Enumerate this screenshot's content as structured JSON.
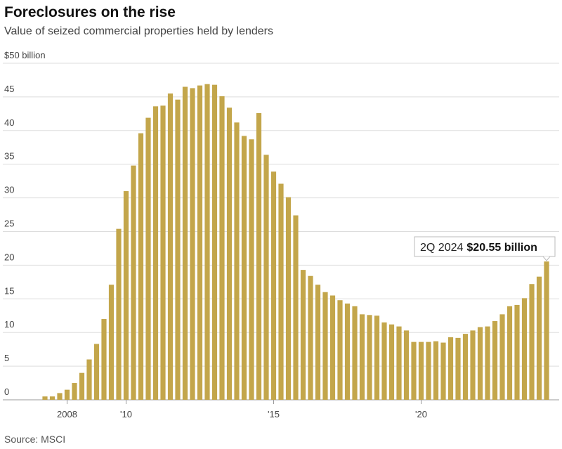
{
  "chart_data": {
    "type": "bar",
    "title": "Foreclosures on the rise",
    "subtitle": "Value of seized commercial properties held by lenders",
    "source": "Source: MSCI",
    "annotation": "2Q 2024",
    "color": "#c3a64b",
    "grid": true,
    "ylim": [
      0,
      50
    ],
    "yticks": [
      0,
      5,
      10,
      15,
      20,
      25,
      30,
      35,
      40,
      45,
      {
        "value": 50,
        "label": "$50 billion"
      }
    ],
    "categories": [
      null,
      null,
      null,
      "2008",
      null,
      null,
      null,
      null,
      null,
      null,
      null,
      "'10",
      null,
      null,
      null,
      null,
      null,
      null,
      null,
      null,
      null,
      null,
      null,
      null,
      null,
      null,
      null,
      null,
      null,
      null,
      null,
      "'15",
      null,
      null,
      null,
      null,
      null,
      null,
      null,
      null,
      null,
      null,
      null,
      null,
      null,
      null,
      null,
      null,
      null,
      null,
      null,
      "'20",
      null,
      null,
      null,
      null,
      null,
      null,
      null,
      null,
      null,
      null,
      null,
      null,
      null,
      null,
      null,
      null,
      null
    ],
    "values": [
      0.5,
      0.5,
      1,
      1.5,
      2.5,
      4,
      6,
      8.3,
      12,
      17.1,
      25.4,
      31,
      34.8,
      39.6,
      41.9,
      43.6,
      43.7,
      45.5,
      44.6,
      46.5,
      46.3,
      46.7,
      46.9,
      46.8,
      45.1,
      43.4,
      41.2,
      39.2,
      38.7,
      42.6,
      36.4,
      33.9,
      32.1,
      30.1,
      27.4,
      19.3,
      18.4,
      17.1,
      16,
      15.5,
      14.8,
      14.3,
      13.9,
      12.7,
      12.6,
      12.5,
      11.5,
      11.2,
      10.9,
      10.3,
      8.6,
      8.6,
      8.6,
      8.7,
      8.5,
      9.3,
      9.2,
      9.8,
      10.3,
      10.8,
      10.9,
      11.7,
      12.7,
      13.9,
      14.1,
      15.1,
      17.2,
      18.3,
      20.55
    ],
    "value_labels": [
      null,
      null,
      null,
      null,
      null,
      null,
      null,
      null,
      null,
      null,
      null,
      null,
      null,
      null,
      null,
      null,
      null,
      null,
      null,
      null,
      null,
      null,
      null,
      null,
      null,
      null,
      null,
      null,
      null,
      null,
      null,
      null,
      null,
      null,
      null,
      null,
      null,
      null,
      null,
      null,
      null,
      null,
      null,
      null,
      null,
      null,
      null,
      null,
      null,
      null,
      null,
      null,
      null,
      null,
      null,
      null,
      null,
      null,
      null,
      null,
      null,
      null,
      null,
      null,
      null,
      null,
      null,
      null,
      "$20.55 billion"
    ]
  }
}
